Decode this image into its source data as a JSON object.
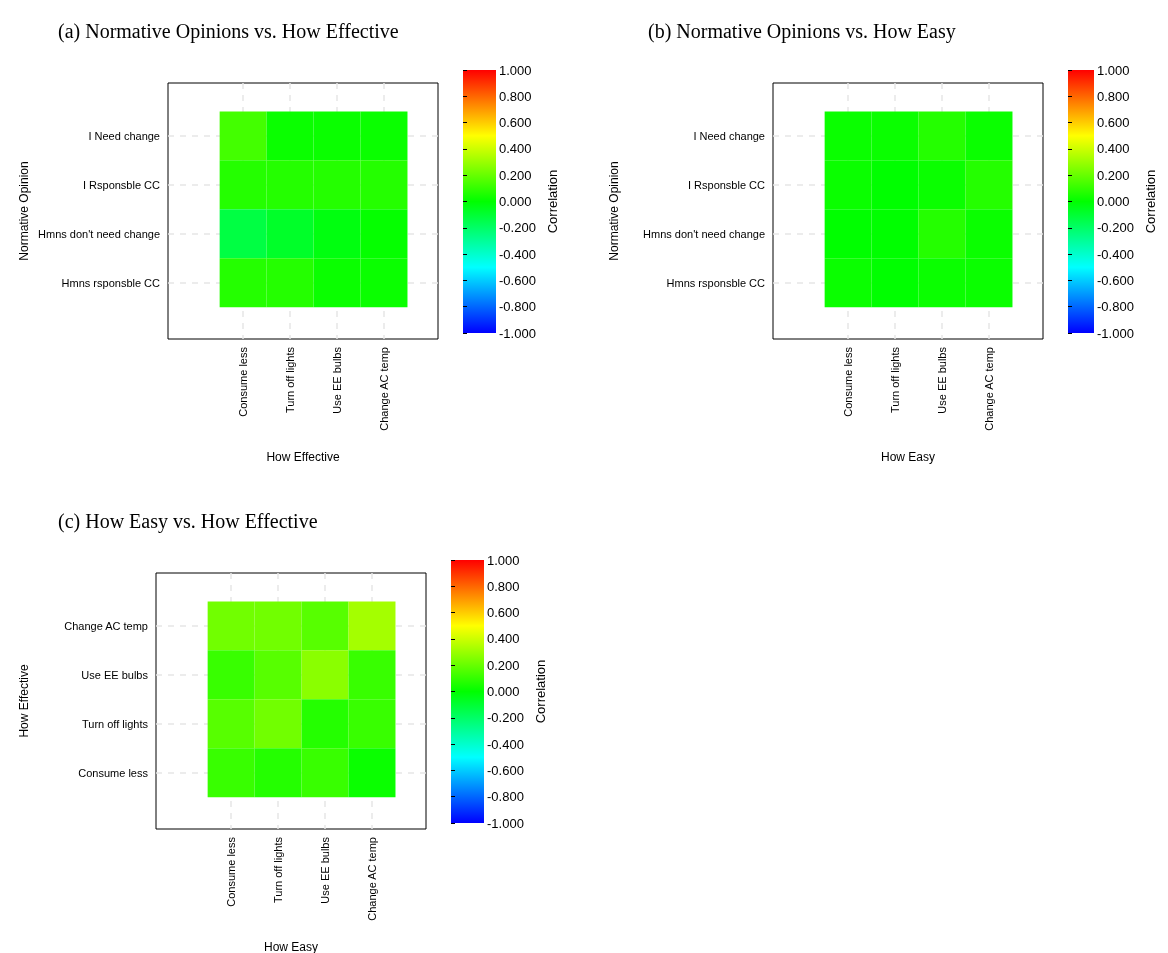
{
  "chart_data": [
    {
      "type": "heatmap",
      "title": "(a) Normative Opinions vs. How Effective",
      "xlabel": "How Effective",
      "ylabel": "Normative Opinion",
      "clabel": "Correlation",
      "categories": [
        "Consume less",
        "Turn off lights",
        "Use EE bulbs",
        "Change AC temp"
      ],
      "y_categories": [
        "I Need change",
        "I Rsponsble CC",
        "Hmns don't need change",
        "Hmns rsponsble CC"
      ],
      "cells": [
        [
          0.13,
          0.02,
          0.02,
          0.02
        ],
        [
          0.07,
          0.07,
          0.07,
          0.07
        ],
        [
          -0.13,
          -0.08,
          -0.03,
          0.01
        ],
        [
          0.07,
          0.07,
          0.02,
          0.02
        ]
      ],
      "clim": [
        -1,
        1
      ],
      "cticks": [
        {
          "value": 1,
          "label": "1.000"
        },
        {
          "value": 0.8,
          "label": "0.800"
        },
        {
          "value": 0.6,
          "label": "0.600"
        },
        {
          "value": 0.4,
          "label": "0.400"
        },
        {
          "value": 0.2,
          "label": "0.200"
        },
        {
          "value": 0,
          "label": "0.000"
        },
        {
          "value": -0.2,
          "label": "-0.200"
        },
        {
          "value": -0.4,
          "label": "-0.400"
        },
        {
          "value": -0.6,
          "label": "-0.600"
        },
        {
          "value": -0.8,
          "label": "-0.800"
        },
        {
          "value": -1,
          "label": "-1.000"
        }
      ],
      "grid": true
    },
    {
      "type": "heatmap",
      "title": "(b) Normative Opinions vs. How Easy",
      "xlabel": "How Easy",
      "ylabel": "Normative Opinion",
      "clabel": "Correlation",
      "categories": [
        "Consume less",
        "Turn off lights",
        "Use EE bulbs",
        "Change AC temp"
      ],
      "y_categories": [
        "I Need change",
        "I Rsponsble CC",
        "Hmns don't need change",
        "Hmns rsponsble CC"
      ],
      "cells": [
        [
          0.02,
          0.02,
          0.07,
          0.02
        ],
        [
          0.02,
          0.0,
          0.02,
          0.07
        ],
        [
          0.0,
          0.0,
          0.07,
          0.02
        ],
        [
          0.02,
          0.0,
          0.02,
          0.02
        ]
      ],
      "clim": [
        -1,
        1
      ],
      "cticks": [
        {
          "value": 1,
          "label": "1.000"
        },
        {
          "value": 0.8,
          "label": "0.800"
        },
        {
          "value": 0.6,
          "label": "0.600"
        },
        {
          "value": 0.4,
          "label": "0.400"
        },
        {
          "value": 0.2,
          "label": "0.200"
        },
        {
          "value": 0,
          "label": "0.000"
        },
        {
          "value": -0.2,
          "label": "-0.200"
        },
        {
          "value": -0.4,
          "label": "-0.400"
        },
        {
          "value": -0.6,
          "label": "-0.600"
        },
        {
          "value": -0.8,
          "label": "-0.800"
        },
        {
          "value": -1,
          "label": "-1.000"
        }
      ],
      "grid": true
    },
    {
      "type": "heatmap",
      "title": "(c) How Easy vs. How Effective",
      "xlabel": "How Easy",
      "ylabel": "How Effective",
      "clabel": "Correlation",
      "categories": [
        "Consume less",
        "Turn off lights",
        "Use EE bulbs",
        "Change AC temp"
      ],
      "y_categories": [
        "Change AC temp",
        "Use EE bulbs",
        "Turn off lights",
        "Consume less"
      ],
      "cells": [
        [
          0.22,
          0.22,
          0.17,
          0.32
        ],
        [
          0.11,
          0.17,
          0.27,
          0.11
        ],
        [
          0.17,
          0.22,
          0.07,
          0.11
        ],
        [
          0.11,
          0.07,
          0.11,
          0.02
        ]
      ],
      "clim": [
        -1,
        1
      ],
      "cticks": [
        {
          "value": 1,
          "label": "1.000"
        },
        {
          "value": 0.8,
          "label": "0.800"
        },
        {
          "value": 0.6,
          "label": "0.600"
        },
        {
          "value": 0.4,
          "label": "0.400"
        },
        {
          "value": 0.2,
          "label": "0.200"
        },
        {
          "value": 0,
          "label": "0.000"
        },
        {
          "value": -0.2,
          "label": "-0.200"
        },
        {
          "value": -0.4,
          "label": "-0.400"
        },
        {
          "value": -0.6,
          "label": "-0.600"
        },
        {
          "value": -0.8,
          "label": "-0.800"
        },
        {
          "value": -1,
          "label": "-1.000"
        }
      ],
      "grid": true
    }
  ]
}
